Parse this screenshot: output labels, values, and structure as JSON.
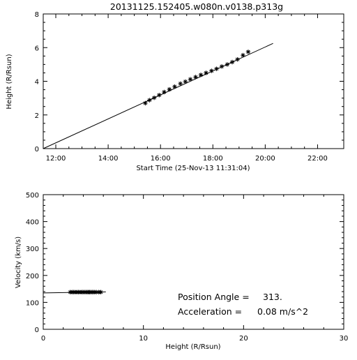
{
  "page_title": "20131125.152405.w080n.v0138.p313g",
  "chart_data": [
    {
      "type": "scatter",
      "title": "20131125.152405.w080n.v0138.p313g",
      "xlabel": "Start Time (25-Nov-13 11:31:04)",
      "ylabel": "Height (R/Rsun)",
      "xticks": [
        "12:00",
        "14:00",
        "16:00",
        "18:00",
        "20:00",
        "22:00"
      ],
      "yticks": [
        "0",
        "2",
        "4",
        "6",
        "8"
      ],
      "xlim_hours": [
        11.52,
        23.0
      ],
      "ylim": [
        0,
        8
      ],
      "series": [
        {
          "marker": "asterisk",
          "x_hours": [
            15.42,
            15.58,
            15.76,
            15.95,
            16.14,
            16.34,
            16.54,
            16.76,
            16.95,
            17.14,
            17.34,
            17.54,
            17.74,
            17.95,
            18.14,
            18.34,
            18.55,
            18.74,
            18.94,
            19.15,
            19.35
          ],
          "y": [
            2.7,
            2.88,
            3.02,
            3.18,
            3.36,
            3.52,
            3.68,
            3.86,
            3.98,
            4.12,
            4.25,
            4.38,
            4.5,
            4.62,
            4.74,
            4.88,
            5.0,
            5.14,
            5.3,
            5.55,
            5.75
          ]
        }
      ],
      "fit_line": {
        "x_hours": [
          11.52,
          20.3
        ],
        "y": [
          0,
          6.25
        ]
      }
    },
    {
      "type": "scatter",
      "xlabel": "Height (R/Rsun)",
      "ylabel": "Velocity (km/s)",
      "xticks": [
        "0",
        "10",
        "20",
        "30"
      ],
      "yticks": [
        "0",
        "100",
        "200",
        "300",
        "400",
        "500"
      ],
      "xlim": [
        0,
        30
      ],
      "ylim": [
        0,
        500
      ],
      "series": [
        {
          "marker": "asterisk",
          "x": [
            2.7,
            2.88,
            3.02,
            3.18,
            3.36,
            3.52,
            3.68,
            3.86,
            3.98,
            4.12,
            4.25,
            4.38,
            4.5,
            4.62,
            4.74,
            4.88,
            5.0,
            5.14,
            5.3,
            5.55,
            5.75
          ],
          "y": [
            138,
            138,
            138,
            138,
            138,
            138,
            138,
            138,
            138,
            138,
            138,
            138,
            138,
            138,
            138,
            138,
            138,
            138,
            138,
            138,
            138
          ]
        }
      ],
      "fit_line": {
        "x": [
          0,
          6.25
        ],
        "y": [
          135,
          139
        ]
      },
      "annotations": [
        {
          "label": "Position Angle =",
          "value": "313."
        },
        {
          "label": "Acceleration =",
          "value": "0.08 m/s^2"
        }
      ]
    }
  ]
}
